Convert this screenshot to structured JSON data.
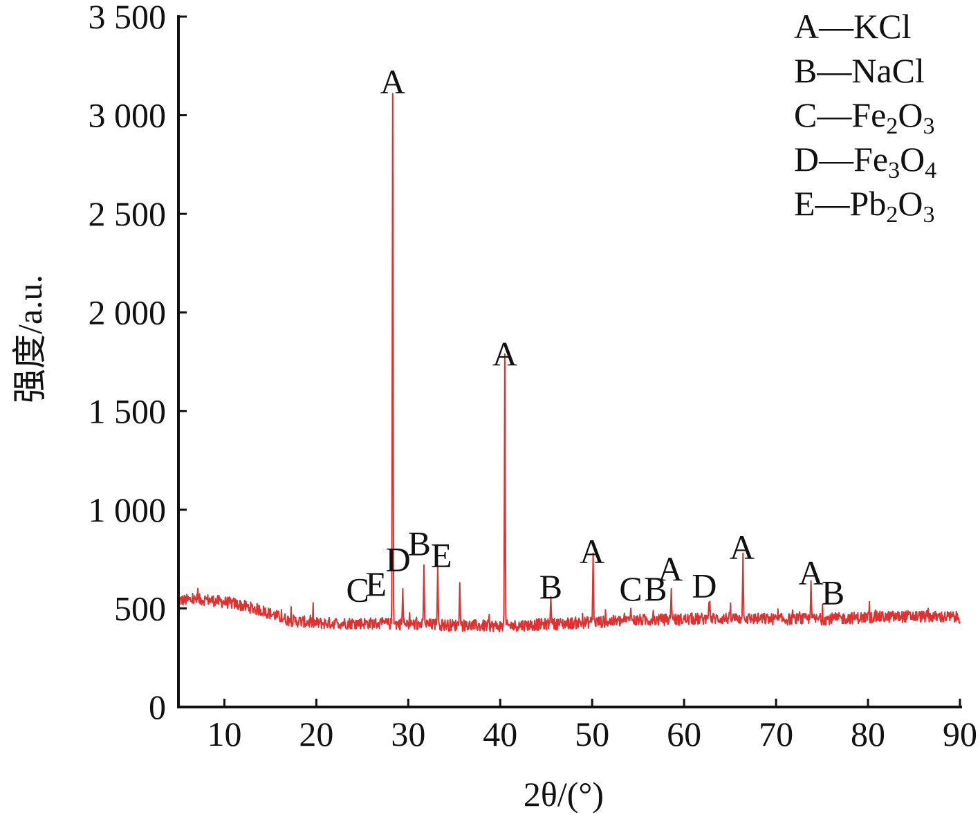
{
  "chart_data": {
    "type": "line",
    "title": "",
    "xlabel": "2θ/(°)",
    "ylabel": "强度/a.u.",
    "xlim": [
      5,
      90
    ],
    "ylim": [
      0,
      3500
    ],
    "x_ticks": [
      10,
      20,
      30,
      40,
      50,
      60,
      70,
      80,
      90
    ],
    "y_ticks": [
      0,
      500,
      1000,
      1500,
      2000,
      2500,
      3000,
      3500
    ],
    "y_tick_labels": [
      "0",
      "500",
      "1 000",
      "1 500",
      "2 000",
      "2 500",
      "3 000",
      "3 500"
    ],
    "grid": false,
    "line_color": "#e03030",
    "legend_position": "top-right",
    "legend": [
      {
        "key": "A",
        "sep": "—",
        "parts": [
          {
            "t": "KCl",
            "sub": false
          }
        ]
      },
      {
        "key": "B",
        "sep": "—",
        "parts": [
          {
            "t": "NaCl",
            "sub": false
          }
        ]
      },
      {
        "key": "C",
        "sep": "—",
        "parts": [
          {
            "t": "Fe",
            "sub": false
          },
          {
            "t": "2",
            "sub": true
          },
          {
            "t": "O",
            "sub": false
          },
          {
            "t": "3",
            "sub": true
          }
        ]
      },
      {
        "key": "D",
        "sep": "—",
        "parts": [
          {
            "t": "Fe",
            "sub": false
          },
          {
            "t": "3",
            "sub": true
          },
          {
            "t": "O",
            "sub": false
          },
          {
            "t": "4",
            "sub": true
          }
        ]
      },
      {
        "key": "E",
        "sep": "—",
        "parts": [
          {
            "t": "Pb",
            "sub": false
          },
          {
            "t": "2",
            "sub": true
          },
          {
            "t": "O",
            "sub": false
          },
          {
            "t": "3",
            "sub": true
          }
        ]
      }
    ],
    "baseline": [
      [
        5,
        540
      ],
      [
        8,
        545
      ],
      [
        11,
        525
      ],
      [
        14,
        490
      ],
      [
        17,
        440
      ],
      [
        20,
        425
      ],
      [
        25,
        425
      ],
      [
        30,
        420
      ],
      [
        35,
        415
      ],
      [
        40,
        410
      ],
      [
        45,
        420
      ],
      [
        50,
        430
      ],
      [
        55,
        440
      ],
      [
        60,
        445
      ],
      [
        65,
        450
      ],
      [
        70,
        445
      ],
      [
        75,
        445
      ],
      [
        80,
        455
      ],
      [
        85,
        460
      ],
      [
        90,
        455
      ]
    ],
    "peaks": [
      {
        "x": 28.3,
        "y": 3110,
        "label": "A"
      },
      {
        "x": 29.4,
        "y": 600
      },
      {
        "x": 31.7,
        "y": 720
      },
      {
        "x": 33.2,
        "y": 710
      },
      {
        "x": 35.6,
        "y": 630
      },
      {
        "x": 40.5,
        "y": 1790,
        "label": "A"
      },
      {
        "x": 45.5,
        "y": 560
      },
      {
        "x": 50.1,
        "y": 780,
        "label": "A"
      },
      {
        "x": 54.2,
        "y": 500
      },
      {
        "x": 58.6,
        "y": 600
      },
      {
        "x": 62.7,
        "y": 530
      },
      {
        "x": 66.4,
        "y": 780,
        "label": "A"
      },
      {
        "x": 73.8,
        "y": 640
      }
    ],
    "peak_labels": [
      {
        "text": "A",
        "x": 28.3,
        "y": 3110
      },
      {
        "text": "A",
        "x": 40.5,
        "y": 1730
      },
      {
        "text": "B",
        "x": 31.2,
        "y": 770
      },
      {
        "text": "E",
        "x": 33.6,
        "y": 710
      },
      {
        "text": "D",
        "x": 28.9,
        "y": 690
      },
      {
        "text": "C",
        "x": 24.5,
        "y": 535
      },
      {
        "text": "E",
        "x": 26.5,
        "y": 565
      },
      {
        "text": "B",
        "x": 45.5,
        "y": 550
      },
      {
        "text": "A",
        "x": 50.0,
        "y": 730
      },
      {
        "text": "C",
        "x": 54.2,
        "y": 540
      },
      {
        "text": "B",
        "x": 56.9,
        "y": 540
      },
      {
        "text": "A",
        "x": 58.5,
        "y": 640
      },
      {
        "text": "D",
        "x": 62.2,
        "y": 555
      },
      {
        "text": "A",
        "x": 66.3,
        "y": 750
      },
      {
        "text": "A",
        "x": 73.8,
        "y": 620
      },
      {
        "text": "B",
        "x": 76.2,
        "y": 520
      }
    ]
  }
}
